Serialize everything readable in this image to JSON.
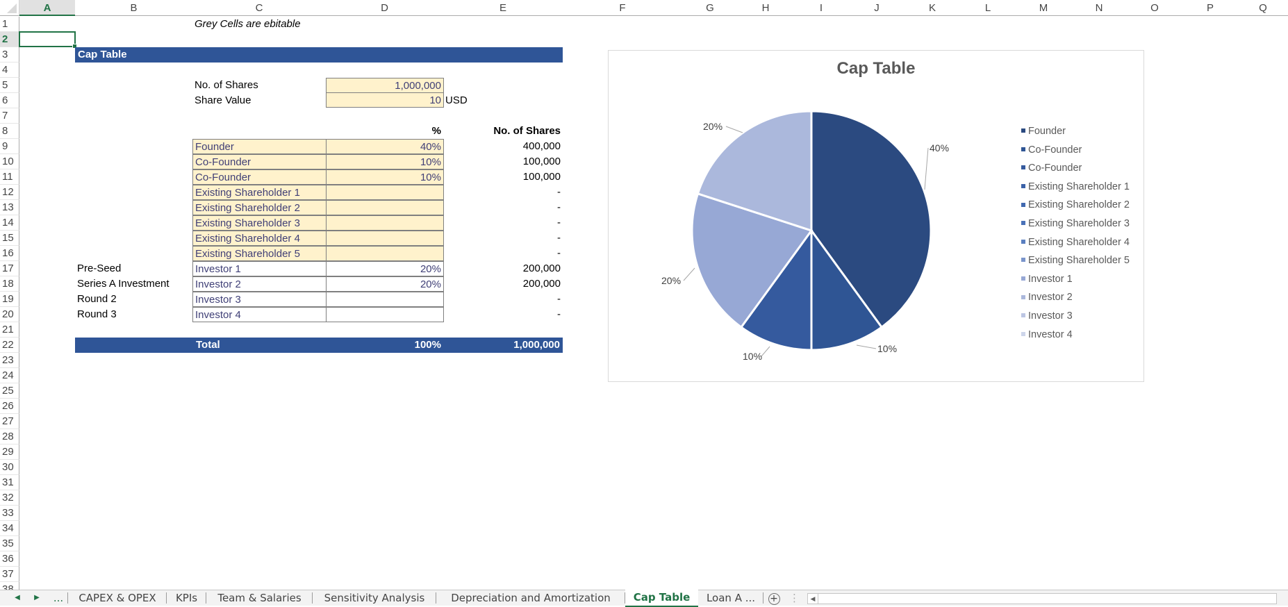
{
  "app": {
    "selected_cell": "A2",
    "columns": [
      "A",
      "B",
      "C",
      "D",
      "E",
      "F",
      "G",
      "H",
      "I",
      "J",
      "K",
      "L",
      "M",
      "N",
      "O",
      "P",
      "Q"
    ],
    "rows": [
      1,
      2,
      3,
      4,
      5,
      6,
      7,
      8,
      9,
      10,
      11,
      12,
      13,
      14,
      15,
      16,
      17,
      18,
      19,
      20,
      21,
      22,
      23,
      24,
      25,
      26,
      27,
      28,
      29,
      30,
      31,
      32,
      33,
      34,
      35,
      36,
      37,
      38
    ]
  },
  "sheet": {
    "note": "Grey Cells are ebitable",
    "title": "Cap Table",
    "no_of_shares_label": "No. of Shares",
    "no_of_shares_value": "1,000,000",
    "share_value_label": "Share Value",
    "share_value_value": "10",
    "share_value_unit": "USD",
    "pct_header": "%",
    "shares_header": "No. of Shares",
    "holders": [
      {
        "round": "",
        "name": "Founder",
        "pct": "40%",
        "shares": "400,000",
        "style": "yellow"
      },
      {
        "round": "",
        "name": "Co-Founder",
        "pct": "10%",
        "shares": "100,000",
        "style": "yellow"
      },
      {
        "round": "",
        "name": "Co-Founder",
        "pct": "10%",
        "shares": "100,000",
        "style": "yellow"
      },
      {
        "round": "",
        "name": "Existing Shareholder 1",
        "pct": "",
        "shares": "-",
        "style": "yellow"
      },
      {
        "round": "",
        "name": "Existing Shareholder 2",
        "pct": "",
        "shares": "-",
        "style": "yellow"
      },
      {
        "round": "",
        "name": "Existing Shareholder 3",
        "pct": "",
        "shares": "-",
        "style": "yellow"
      },
      {
        "round": "",
        "name": "Existing Shareholder 4",
        "pct": "",
        "shares": "-",
        "style": "yellow"
      },
      {
        "round": "",
        "name": "Existing Shareholder 5",
        "pct": "",
        "shares": "-",
        "style": "yellow"
      },
      {
        "round": "Pre-Seed",
        "name": "Investor 1",
        "pct": "20%",
        "shares": "200,000",
        "style": "white"
      },
      {
        "round": "Series A Investment",
        "name": "Investor 2",
        "pct": "20%",
        "shares": "200,000",
        "style": "white"
      },
      {
        "round": "Round 2",
        "name": "Investor 3",
        "pct": "",
        "shares": "-",
        "style": "white"
      },
      {
        "round": "Round 3",
        "name": "Investor 4",
        "pct": "",
        "shares": "-",
        "style": "white"
      }
    ],
    "total_label": "Total",
    "total_pct": "100%",
    "total_shares": "1,000,000"
  },
  "chart_data": {
    "type": "pie",
    "title": "Cap Table",
    "categories": [
      "Founder",
      "Co-Founder",
      "Co-Founder",
      "Existing Shareholder 1",
      "Existing Shareholder 2",
      "Existing Shareholder 3",
      "Existing Shareholder 4",
      "Existing Shareholder 5",
      "Investor 1",
      "Investor 2",
      "Investor 3",
      "Investor 4"
    ],
    "values": [
      40,
      10,
      10,
      0,
      0,
      0,
      0,
      0,
      20,
      20,
      0,
      0
    ],
    "data_labels": [
      "40%",
      "10%",
      "10%",
      "",
      "",
      "",
      "",
      "",
      "20%",
      "20%",
      "",
      ""
    ],
    "colors": [
      "#2b4a80",
      "#2f5594",
      "#355a9e",
      "#3b62a8",
      "#4169b0",
      "#4a72b8",
      "#5a7fc0",
      "#7a95cb",
      "#97a8d5",
      "#abb8dc",
      "#bcc6e3",
      "#cdd5ea"
    ],
    "legend_position": "right"
  },
  "tabs": {
    "nav_prev": "◀",
    "nav_next": "▶",
    "more": "...",
    "items": [
      {
        "label": "CAPEX & OPEX",
        "active": false
      },
      {
        "label": "KPIs",
        "active": false
      },
      {
        "label": "Team & Salaries",
        "active": false
      },
      {
        "label": "Sensitivity Analysis",
        "active": false
      },
      {
        "label": "Depreciation and Amortization",
        "active": false
      },
      {
        "label": "Cap Table",
        "active": true
      },
      {
        "label": "Loan A ...",
        "active": false
      }
    ],
    "add_sheet": "+"
  }
}
